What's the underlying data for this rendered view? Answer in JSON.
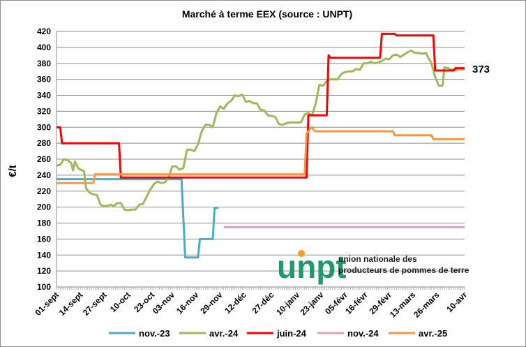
{
  "chart_data": {
    "type": "line",
    "title": "Marché à terme EEX (source : UNPT)",
    "ylabel": "€/t",
    "xlabel": "",
    "ylim": [
      100,
      420
    ],
    "yticks": [
      100,
      120,
      140,
      160,
      180,
      200,
      220,
      240,
      260,
      280,
      300,
      320,
      340,
      360,
      380,
      400,
      420
    ],
    "xlim": [
      0,
      222
    ],
    "xticks": [
      {
        "label": "01-sept",
        "x": 0
      },
      {
        "label": "14-sept",
        "x": 13
      },
      {
        "label": "27-sept",
        "x": 26
      },
      {
        "label": "10-oct",
        "x": 39
      },
      {
        "label": "23-oct",
        "x": 52
      },
      {
        "label": "03-nov",
        "x": 63
      },
      {
        "label": "16-nov",
        "x": 76
      },
      {
        "label": "29-nov",
        "x": 89
      },
      {
        "label": "12-déc",
        "x": 102
      },
      {
        "label": "27-déc",
        "x": 117
      },
      {
        "label": "10-janv",
        "x": 131
      },
      {
        "label": "23-janv",
        "x": 144
      },
      {
        "label": "05-févr",
        "x": 157
      },
      {
        "label": "16-févr",
        "x": 168
      },
      {
        "label": "29-févr",
        "x": 181
      },
      {
        "label": "13-mars",
        "x": 194
      },
      {
        "label": "26-mars",
        "x": 207
      },
      {
        "label": "10-avr",
        "x": 222
      }
    ],
    "grid": true,
    "legend": "bottom",
    "annotation": {
      "text": "373",
      "x": 222,
      "y": 373
    },
    "series": [
      {
        "name": "nov.-23",
        "color": "#4bacc6",
        "step": true,
        "points": [
          [
            0,
            235
          ],
          [
            68,
            235
          ],
          [
            70,
            137
          ],
          [
            77,
            137
          ],
          [
            78,
            160
          ],
          [
            85,
            160
          ],
          [
            86,
            199
          ],
          [
            88,
            199
          ]
        ]
      },
      {
        "name": "avr.-24",
        "color": "#9bbb59",
        "step": false,
        "points": [
          [
            0,
            252
          ],
          [
            2,
            253
          ],
          [
            4,
            260
          ],
          [
            6,
            259
          ],
          [
            8,
            255
          ],
          [
            9,
            246
          ],
          [
            10,
            257
          ],
          [
            12,
            248
          ],
          [
            13,
            247
          ],
          [
            15,
            245
          ],
          [
            16,
            224
          ],
          [
            18,
            218
          ],
          [
            20,
            216
          ],
          [
            22,
            215
          ],
          [
            24,
            203
          ],
          [
            26,
            201
          ],
          [
            28,
            202
          ],
          [
            30,
            203
          ],
          [
            31,
            201
          ],
          [
            33,
            205
          ],
          [
            35,
            205
          ],
          [
            37,
            197
          ],
          [
            39,
            196
          ],
          [
            41,
            197
          ],
          [
            43,
            197
          ],
          [
            45,
            203
          ],
          [
            47,
            204
          ],
          [
            49,
            213
          ],
          [
            51,
            222
          ],
          [
            53,
            229
          ],
          [
            55,
            232
          ],
          [
            57,
            230
          ],
          [
            59,
            231
          ],
          [
            61,
            237
          ],
          [
            63,
            251
          ],
          [
            65,
            251
          ],
          [
            67,
            247
          ],
          [
            69,
            249
          ],
          [
            71,
            272
          ],
          [
            73,
            272
          ],
          [
            75,
            270
          ],
          [
            77,
            279
          ],
          [
            79,
            295
          ],
          [
            81,
            303
          ],
          [
            83,
            303
          ],
          [
            85,
            300
          ],
          [
            87,
            318
          ],
          [
            89,
            326
          ],
          [
            91,
            323
          ],
          [
            93,
            330
          ],
          [
            95,
            333
          ],
          [
            97,
            340
          ],
          [
            99,
            339
          ],
          [
            101,
            341
          ],
          [
            103,
            332
          ],
          [
            105,
            333
          ],
          [
            107,
            330
          ],
          [
            109,
            330
          ],
          [
            111,
            322
          ],
          [
            113,
            321
          ],
          [
            115,
            315
          ],
          [
            117,
            314
          ],
          [
            119,
            313
          ],
          [
            121,
            304
          ],
          [
            123,
            303
          ],
          [
            125,
            305
          ],
          [
            127,
            306
          ],
          [
            129,
            306
          ],
          [
            131,
            306
          ],
          [
            133,
            306
          ],
          [
            135,
            316
          ],
          [
            137,
            318
          ],
          [
            139,
            315
          ],
          [
            141,
            330
          ],
          [
            143,
            353
          ],
          [
            145,
            352
          ],
          [
            147,
            358
          ],
          [
            149,
            360
          ],
          [
            151,
            360
          ],
          [
            153,
            360
          ],
          [
            155,
            367
          ],
          [
            157,
            369
          ],
          [
            159,
            370
          ],
          [
            161,
            370
          ],
          [
            163,
            373
          ],
          [
            165,
            372
          ],
          [
            167,
            380
          ],
          [
            169,
            380
          ],
          [
            171,
            382
          ],
          [
            173,
            380
          ],
          [
            175,
            381
          ],
          [
            177,
            383
          ],
          [
            179,
            386
          ],
          [
            181,
            385
          ],
          [
            183,
            390
          ],
          [
            185,
            391
          ],
          [
            187,
            388
          ],
          [
            189,
            391
          ],
          [
            191,
            394
          ],
          [
            193,
            396
          ],
          [
            195,
            393
          ],
          [
            197,
            393
          ],
          [
            199,
            392
          ],
          [
            201,
            393
          ],
          [
            202,
            388
          ],
          [
            204,
            380
          ],
          [
            206,
            363
          ],
          [
            208,
            352
          ],
          [
            210,
            352
          ],
          [
            211,
            375
          ],
          [
            213,
            374
          ],
          [
            215,
            372
          ],
          [
            217,
            371
          ],
          [
            219,
            373
          ],
          [
            221,
            372
          ],
          [
            222,
            373
          ]
        ]
      },
      {
        "name": "juin-24",
        "color": "#ff0000",
        "step": true,
        "points": [
          [
            0,
            300
          ],
          [
            2,
            300
          ],
          [
            3,
            280
          ],
          [
            34,
            280
          ],
          [
            35,
            237
          ],
          [
            136,
            237
          ],
          [
            137,
            315
          ],
          [
            147,
            315
          ],
          [
            148,
            390
          ],
          [
            149,
            387
          ],
          [
            176,
            387
          ],
          [
            177,
            417
          ],
          [
            184,
            417
          ],
          [
            185,
            415
          ],
          [
            205,
            415
          ],
          [
            206,
            371
          ],
          [
            216,
            371
          ],
          [
            217,
            374
          ],
          [
            222,
            374
          ]
        ]
      },
      {
        "name": "nov.-24",
        "color": "#d9a6b4",
        "step": true,
        "points": [
          [
            91,
            175
          ],
          [
            222,
            175
          ]
        ]
      },
      {
        "name": "avr.-25",
        "color": "#f79646",
        "step": true,
        "points": [
          [
            0,
            230
          ],
          [
            20,
            230
          ],
          [
            21,
            241
          ],
          [
            135,
            241
          ],
          [
            136,
            292
          ],
          [
            138,
            298
          ],
          [
            139,
            300
          ],
          [
            140,
            296
          ],
          [
            141,
            295
          ],
          [
            183,
            295
          ],
          [
            184,
            290
          ],
          [
            204,
            290
          ],
          [
            205,
            285
          ],
          [
            222,
            285
          ]
        ]
      }
    ]
  },
  "logo": {
    "text": "unpt",
    "line1": "union nationale des",
    "line2": "producteurs de pommes de terre",
    "color": "#1f9a6a",
    "dot_color": "#f4a020"
  }
}
